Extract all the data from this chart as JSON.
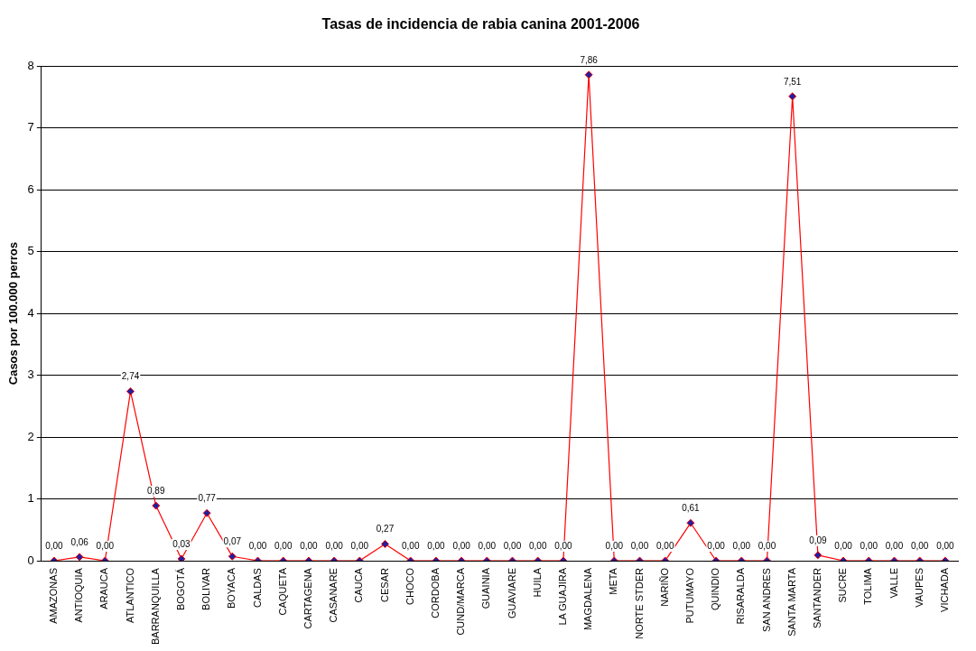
{
  "chart_data": {
    "type": "line",
    "title": "Tasas de incidencia de rabia canina 2001-2006",
    "ylabel": "Casos por 100.000 perros",
    "categories": [
      "AMAZONAS",
      "ANTIOQUIA",
      "ARAUCA",
      "ATLANTICO",
      "BARRANQUILLA",
      "BOGOTÁ",
      "BOLIVAR",
      "BOYACA",
      "CALDAS",
      "CAQUETA",
      "CARTAGENA",
      "CASANARE",
      "CAUCA",
      "CESAR",
      "CHOCO",
      "CORDOBA",
      "CUND/MARCA",
      "GUAINIA",
      "GUAVIARE",
      "HUILA",
      "LA GUAJIRA",
      "MAGDALENA",
      "META",
      "NORTE STDER",
      "NARIÑO",
      "PUTUMAYO",
      "QUINDIO",
      "RISARALDA",
      "SAN ANDRES",
      "SANTA MARTA",
      "SANTANDER",
      "SUCRE",
      "TOLIMA",
      "VALLE",
      "VAUPES",
      "VICHADA"
    ],
    "series": [
      {
        "color": "#ff0000",
        "values": [
          0,
          0.06,
          0,
          2.74,
          0.89,
          0.03,
          0.77,
          0.07,
          0,
          0,
          0,
          0,
          0,
          0.27,
          0,
          0,
          0,
          0,
          0,
          0,
          0,
          7.86,
          0,
          0,
          0,
          0.61,
          0,
          0,
          0,
          7.51,
          0.09,
          0,
          0,
          0,
          0,
          0
        ],
        "value_labels": [
          "0,00",
          "0,06",
          "0,00",
          "2,74",
          "0,89",
          "0,03",
          "0,77",
          "0,07",
          "0,00",
          "0,00",
          "0,00",
          "0,00",
          "0,00",
          "0,27",
          "0,00",
          "0,00",
          "0,00",
          "0,00",
          "0,00",
          "0,00",
          "0,00",
          "7,86",
          "0,00",
          "0,00",
          "0,00",
          "0,61",
          "0,00",
          "0,00",
          "0,00",
          "7,51",
          "0,09",
          "0,00",
          "0,00",
          "0,00",
          "0,00",
          "0,00"
        ]
      }
    ],
    "ylim": [
      0,
      8
    ],
    "yticks": [
      0,
      1,
      2,
      3,
      4,
      5,
      6,
      7,
      8
    ],
    "grid": "y",
    "legend": false,
    "marker": "diamond",
    "line_style": "solid"
  }
}
